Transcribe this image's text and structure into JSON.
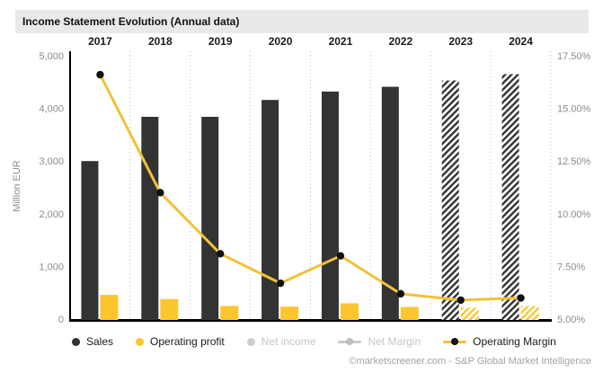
{
  "title": "Income Statement Evolution (Annual data)",
  "footer": "©marketscreener.com - S&P Global Market Intelligence",
  "legend": {
    "items": [
      {
        "label": "Sales",
        "type": "dot",
        "color": "#333333",
        "enabled": true
      },
      {
        "label": "Operating profit",
        "type": "dot",
        "color": "#fdc62f",
        "enabled": true
      },
      {
        "label": "Net income",
        "type": "dot",
        "color": "#cccccc",
        "enabled": false
      },
      {
        "label": "Net Margin",
        "type": "line-dot",
        "color": "#c9c9c9",
        "enabled": false
      },
      {
        "label": "Operating Margin",
        "type": "line-dot",
        "color": "#f2c138",
        "enabled": true
      }
    ]
  },
  "chart_data": {
    "type": "bar+line",
    "title": "Income Statement Evolution (Annual data)",
    "categories": [
      "2017",
      "2018",
      "2019",
      "2020",
      "2021",
      "2022",
      "2023",
      "2024"
    ],
    "estimate_years": [
      "2023",
      "2024"
    ],
    "series": [
      {
        "name": "Sales",
        "type": "bar",
        "axis": "left",
        "color": "#333333",
        "values": [
          3000,
          3840,
          3840,
          4160,
          4320,
          4410,
          4530,
          4650
        ]
      },
      {
        "name": "Operating profit",
        "type": "bar",
        "axis": "left",
        "color": "#fdc62f",
        "values": [
          460,
          380,
          250,
          235,
          300,
          230,
          215,
          250
        ]
      },
      {
        "name": "Operating Margin",
        "type": "line",
        "axis": "right",
        "color": "#f2c138",
        "marker_color": "#111111",
        "values": [
          16.6,
          11.0,
          8.1,
          6.7,
          8.0,
          6.2,
          5.9,
          6.0
        ]
      }
    ],
    "left_axis": {
      "label": "Million EUR",
      "min": 0,
      "max": 5000,
      "ticks": [
        {
          "value": 0,
          "label": "0"
        },
        {
          "value": 1000,
          "label": "1,000"
        },
        {
          "value": 2000,
          "label": "2,000"
        },
        {
          "value": 3000,
          "label": "3,000"
        },
        {
          "value": 4000,
          "label": "4,000"
        },
        {
          "value": 5000,
          "label": "5,000"
        }
      ]
    },
    "right_axis": {
      "min": 5,
      "max": 17.5,
      "ticks": [
        {
          "value": 5,
          "label": "5.00%"
        },
        {
          "value": 7.5,
          "label": "7.50%"
        },
        {
          "value": 10,
          "label": "10.00%"
        },
        {
          "value": 12.5,
          "label": "12.50%"
        },
        {
          "value": 15,
          "label": "15.00%"
        },
        {
          "value": 17.5,
          "label": "17.50%"
        }
      ]
    },
    "grid": "vertical-dotted",
    "legend_position": "bottom"
  },
  "colors": {
    "sales": "#333333",
    "operating_profit": "#fdc62f",
    "operating_margin_line": "#f2c138",
    "marker": "#111111",
    "axis_text": "#8c8c8c",
    "grid": "#bfbfbf",
    "title_bar_bg": "#e9e9e9"
  }
}
